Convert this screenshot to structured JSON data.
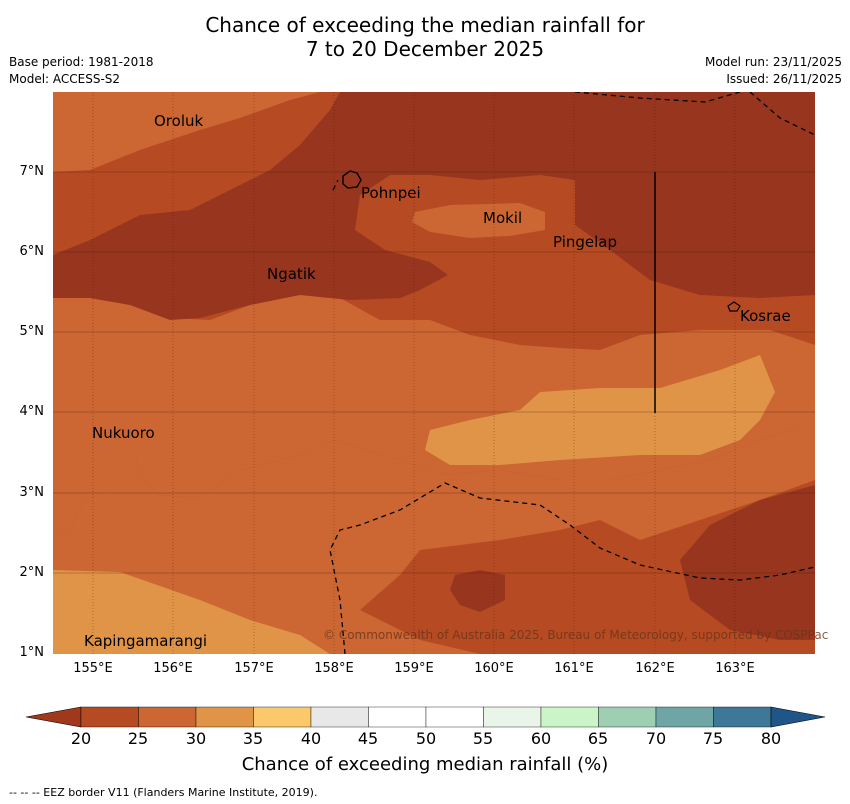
{
  "title": {
    "line1": "Chance of exceeding the median rainfall for",
    "line2": "7 to 20 December 2025"
  },
  "meta": {
    "base_period": "Base period: 1981-2018",
    "model": "Model: ACCESS-S2",
    "model_run": "Model run: 23/11/2025",
    "issued": "Issued: 26/11/2025"
  },
  "map": {
    "lat_labels": [
      "7°N",
      "6°N",
      "5°N",
      "4°N",
      "3°N",
      "2°N",
      "1°N"
    ],
    "lon_labels": [
      "155°E",
      "156°E",
      "157°E",
      "158°E",
      "159°E",
      "160°E",
      "161°E",
      "162°E",
      "163°E"
    ],
    "places": [
      "Oroluk",
      "Pohnpei",
      "Mokil",
      "Pingelap",
      "Ngatik",
      "Kosrae",
      "Nukuoro",
      "Kapingamarangi"
    ],
    "copyright": "© Commonwealth of Australia 2025, Bureau of Meteorology, supported by COSPPac"
  },
  "colorbar": {
    "ticks": [
      "20",
      "25",
      "30",
      "35",
      "40",
      "45",
      "50",
      "55",
      "60",
      "65",
      "70",
      "75",
      "80"
    ],
    "colors": [
      "#a0391c",
      "#b64a22",
      "#cc6633",
      "#e09447",
      "#fbc86c",
      "#e8e8e8",
      "#ffffff",
      "#ffffff",
      "#e8f5e8",
      "#c9f5c9",
      "#9fcfb3",
      "#6fa5a5",
      "#3d7898",
      "#1f5588"
    ],
    "title": "Chance of exceeding median rainfall (%)"
  },
  "footnote": "--  --  -- EEZ border V11 (Flanders Marine Institute, 2019)."
}
